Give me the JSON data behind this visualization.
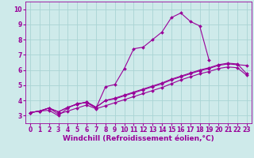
{
  "xlabel": "Windchill (Refroidissement éolien,°C)",
  "bg_color": "#ceeaea",
  "line_color": "#990099",
  "grid_color": "#aad4d4",
  "xlim": [
    -0.5,
    23.5
  ],
  "ylim": [
    2.5,
    10.5
  ],
  "xticks": [
    0,
    1,
    2,
    3,
    4,
    5,
    6,
    7,
    8,
    9,
    10,
    11,
    12,
    13,
    14,
    15,
    16,
    17,
    18,
    19,
    20,
    21,
    22,
    23
  ],
  "yticks": [
    3,
    4,
    5,
    6,
    7,
    8,
    9,
    10
  ],
  "lines": [
    {
      "x": [
        0,
        1,
        2,
        3,
        4,
        5,
        6,
        7,
        8,
        9,
        10,
        11,
        12,
        13,
        14,
        15,
        16,
        17,
        18,
        19
      ],
      "y": [
        3.2,
        3.3,
        3.35,
        3.0,
        3.5,
        3.8,
        3.85,
        3.5,
        4.9,
        5.05,
        6.1,
        7.4,
        7.5,
        8.0,
        8.5,
        9.45,
        9.75,
        9.2,
        8.9,
        6.65
      ]
    },
    {
      "x": [
        0,
        1,
        2,
        3,
        4,
        5,
        6,
        7,
        8,
        9,
        10,
        11,
        12,
        13,
        14,
        15,
        16,
        17,
        18,
        19,
        20,
        21,
        22,
        23
      ],
      "y": [
        3.2,
        3.3,
        3.5,
        3.25,
        3.55,
        3.75,
        3.9,
        3.55,
        4.0,
        4.1,
        4.3,
        4.5,
        4.7,
        4.9,
        5.1,
        5.35,
        5.55,
        5.75,
        5.95,
        6.1,
        6.3,
        6.4,
        6.35,
        6.3
      ]
    },
    {
      "x": [
        0,
        1,
        2,
        3,
        4,
        5,
        6,
        7,
        8,
        9,
        10,
        11,
        12,
        13,
        14,
        15,
        16,
        17,
        18,
        19,
        20,
        21,
        22,
        23
      ],
      "y": [
        3.2,
        3.3,
        3.5,
        3.25,
        3.55,
        3.75,
        3.9,
        3.55,
        4.0,
        4.15,
        4.35,
        4.55,
        4.75,
        4.95,
        5.15,
        5.4,
        5.6,
        5.8,
        6.0,
        6.15,
        6.35,
        6.45,
        6.4,
        5.75
      ]
    },
    {
      "x": [
        0,
        1,
        2,
        3,
        4,
        5,
        6,
        7,
        8,
        9,
        10,
        11,
        12,
        13,
        14,
        15,
        16,
        17,
        18,
        19,
        20,
        21,
        22,
        23
      ],
      "y": [
        3.2,
        3.3,
        3.5,
        3.1,
        3.3,
        3.5,
        3.7,
        3.45,
        3.65,
        3.85,
        4.05,
        4.25,
        4.45,
        4.65,
        4.85,
        5.1,
        5.35,
        5.55,
        5.75,
        5.9,
        6.1,
        6.2,
        6.15,
        5.65
      ]
    }
  ],
  "markersize": 2.0,
  "linewidth": 0.8,
  "tick_fontsize": 5.5,
  "axis_fontsize": 6.5
}
